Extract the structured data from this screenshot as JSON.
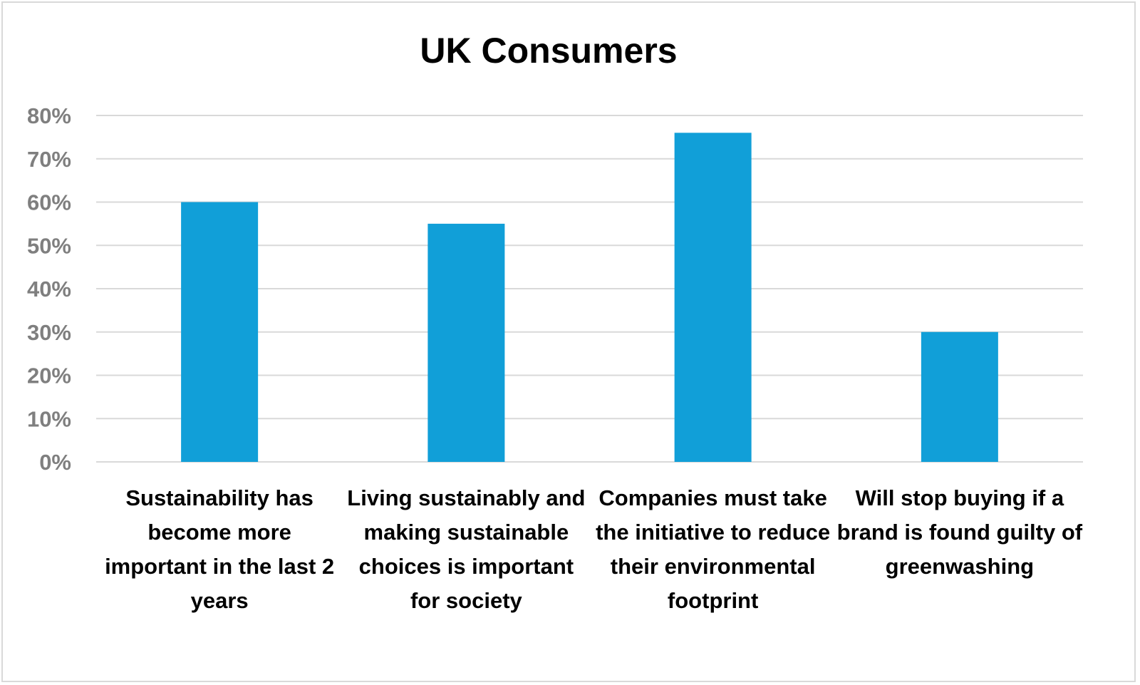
{
  "chart_data": {
    "type": "bar",
    "title": "UK Consumers",
    "categories": [
      "Sustainability has become more important in the last 2 years",
      "Living sustainably and making sustainable choices is important for society",
      "Companies must take the initiative to reduce their environmental footprint",
      "Will stop buying if a brand is found guilty of greenwashing"
    ],
    "values": [
      0.6,
      0.55,
      0.76,
      0.3
    ],
    "ylim": [
      0,
      0.8
    ],
    "yticks": [
      "0%",
      "10%",
      "20%",
      "30%",
      "40%",
      "50%",
      "60%",
      "70%",
      "80%"
    ],
    "xlabel": "",
    "ylabel": "",
    "grid": true,
    "legend": "none",
    "bar_color": "#119fd8",
    "gridline_color": "#d9d9d9",
    "tick_label_color": "#7f7f7f"
  }
}
